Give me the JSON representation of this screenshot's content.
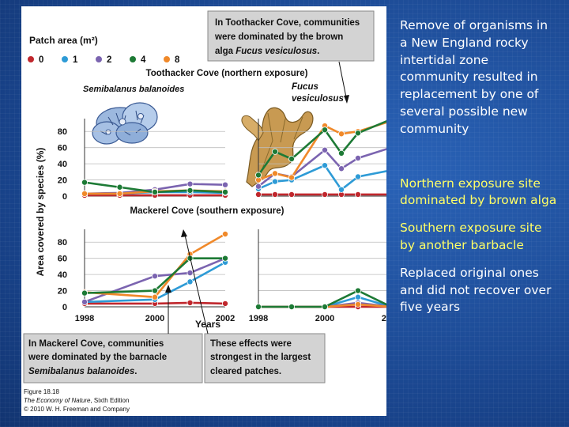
{
  "figure": {
    "legend_title": "Patch area (m²)",
    "legend_items": [
      {
        "label": "0",
        "color": "#c0272d"
      },
      {
        "label": "1",
        "color": "#2e9bd6"
      },
      {
        "label": "2",
        "color": "#7b64b0"
      },
      {
        "label": "4",
        "color": "#1d7a35"
      },
      {
        "label": "8",
        "color": "#f0892a"
      }
    ],
    "callout_top": {
      "line1": "In Toothacker Cove, communities",
      "line2": "were dominated by the brown",
      "line3_plain": "alga ",
      "line3_italic": "Fucus vesiculosus",
      "line3_end": "."
    },
    "toothacker_title": "Toothacker Cove (northern exposure)",
    "semibalanus_label": "Semibalanus balanoides",
    "fucus_label_1": "Fucus",
    "fucus_label_2": "vesiculosus",
    "mackerel_title": "Mackerel Cove (southern exposure)",
    "y_axis_label": "Area covered by species (%)",
    "y_ticks": [
      "0",
      "20",
      "40",
      "60",
      "80"
    ],
    "x_ticks": [
      "1998",
      "2000",
      "2002"
    ],
    "x_axis_label": "Years",
    "callout_bottom_left": {
      "line1": "In Mackerel Cove, communities",
      "line2": "were dominated by the barnacle",
      "line3_italic": "Semibalanus balanoides",
      "line3_end": "."
    },
    "callout_bottom_right": {
      "line1": "These effects were",
      "line2": "strongest in the largest",
      "line3": "cleared patches."
    },
    "credit": {
      "line1": "Figure 18.18",
      "line2": "The Economy of Nature",
      "line2_end": ", Sixth Edition",
      "line3": "© 2010 W. H. Freeman and Company"
    }
  },
  "chart_data": [
    {
      "type": "line",
      "title": "Toothacker Cove (northern exposure)",
      "panel": "Semibalanus balanoides",
      "xlabel": "Years",
      "ylabel": "Area covered by species (%)",
      "ylim": [
        0,
        90
      ],
      "x": [
        1998,
        1999,
        2000,
        2001,
        2002
      ],
      "series": [
        {
          "name": "0",
          "values": [
            1,
            1,
            1,
            1,
            1
          ]
        },
        {
          "name": "1",
          "values": [
            3,
            3,
            5,
            5,
            4
          ]
        },
        {
          "name": "2",
          "values": [
            3,
            4,
            8,
            15,
            14
          ]
        },
        {
          "name": "4",
          "values": [
            17,
            11,
            5,
            7,
            5
          ]
        },
        {
          "name": "8",
          "values": [
            3,
            3,
            6,
            7,
            6
          ]
        }
      ]
    },
    {
      "type": "line",
      "title": "Toothacker Cove (northern exposure)",
      "panel": "Fucus vesiculosus",
      "xlabel": "Years",
      "ylabel": "Area covered by species (%)",
      "ylim": [
        0,
        90
      ],
      "x": [
        1998,
        1998.5,
        1999,
        2000,
        2000.5,
        2001,
        2002
      ],
      "series": [
        {
          "name": "0",
          "values": [
            2,
            2,
            2,
            2,
            2,
            2,
            2
          ]
        },
        {
          "name": "1",
          "values": [
            9,
            18,
            20,
            38,
            8,
            24,
            32
          ]
        },
        {
          "name": "2",
          "values": [
            12,
            28,
            24,
            57,
            34,
            47,
            60
          ]
        },
        {
          "name": "4",
          "values": [
            26,
            55,
            46,
            82,
            53,
            78,
            95
          ]
        },
        {
          "name": "8",
          "values": [
            20,
            28,
            23,
            87,
            77,
            80,
            93
          ]
        }
      ]
    },
    {
      "type": "line",
      "title": "Mackerel Cove (southern exposure)",
      "panel": "Semibalanus balanoides",
      "xlabel": "Years",
      "ylabel": "Area covered by species (%)",
      "ylim": [
        0,
        90
      ],
      "x": [
        1998,
        2000,
        2001,
        2002
      ],
      "series": [
        {
          "name": "0",
          "values": [
            4,
            4,
            5,
            4
          ]
        },
        {
          "name": "1",
          "values": [
            6,
            9,
            31,
            55
          ]
        },
        {
          "name": "2",
          "values": [
            6,
            38,
            42,
            60
          ]
        },
        {
          "name": "4",
          "values": [
            17,
            20,
            60,
            60
          ]
        },
        {
          "name": "8",
          "values": [
            18,
            12,
            65,
            90
          ]
        }
      ]
    },
    {
      "type": "line",
      "title": "Mackerel Cove (southern exposure)",
      "panel": "Fucus vesiculosus",
      "xlabel": "Years",
      "ylabel": "Area covered by species (%)",
      "ylim": [
        0,
        90
      ],
      "x": [
        1998,
        1999,
        2000,
        2001,
        2002
      ],
      "series": [
        {
          "name": "0",
          "values": [
            0,
            0,
            0,
            0,
            0
          ]
        },
        {
          "name": "1",
          "values": [
            0,
            0,
            0,
            12,
            0
          ]
        },
        {
          "name": "2",
          "values": [
            0,
            0,
            0,
            5,
            0
          ]
        },
        {
          "name": "4",
          "values": [
            0,
            0,
            0,
            20,
            0
          ]
        },
        {
          "name": "8",
          "values": [
            0,
            0,
            0,
            3,
            0
          ]
        }
      ]
    }
  ],
  "bullets": [
    {
      "text": "Remove of organisms in a New England rocky intertidal zone community resulted in replacement by one of several possible new community",
      "color": "#ffffff"
    },
    {
      "text": "Northern exposure site dominated by brown alga",
      "color": "#ffff66"
    },
    {
      "text": "Southern exposure site by another barbacle",
      "color": "#ffff66"
    },
    {
      "text": "Replaced original ones and did not recover over five years",
      "color": "#ffffff"
    }
  ]
}
